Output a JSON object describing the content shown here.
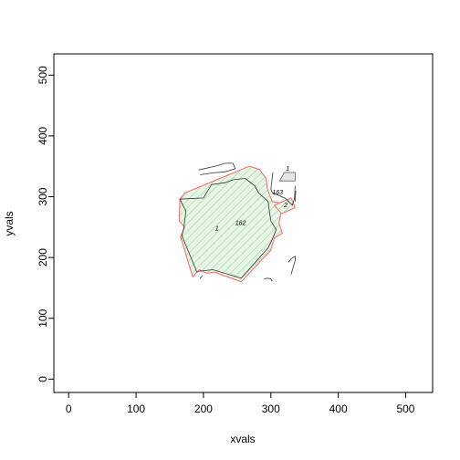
{
  "chart_data": {
    "type": "map",
    "title": "",
    "xlabel": "xvals",
    "ylabel": "yvals",
    "xlim": [
      -22,
      540
    ],
    "ylim": [
      -22,
      535
    ],
    "xticks": [
      0,
      100,
      200,
      300,
      400,
      500
    ],
    "yticks": [
      0,
      100,
      200,
      300,
      400,
      500
    ],
    "grid": false,
    "colors": {
      "main_fill": "#e6f5e6",
      "main_hatch": "#9ad99a",
      "main_border": "#ff6666",
      "building_fill": "#e6e6e6",
      "linework": "#333333"
    },
    "polygons": [
      {
        "id": "main-parcel",
        "style": "main",
        "points": [
          [
            165,
            296
          ],
          [
            172,
            306
          ],
          [
            268,
            350
          ],
          [
            283,
            345
          ],
          [
            293,
            330
          ],
          [
            295,
            312
          ],
          [
            302,
            292
          ],
          [
            318,
            289
          ],
          [
            312,
            257
          ],
          [
            317,
            240
          ],
          [
            305,
            232
          ],
          [
            300,
            212
          ],
          [
            256,
            160
          ],
          [
            216,
            176
          ],
          [
            205,
            174
          ],
          [
            194,
            180
          ],
          [
            184,
            168
          ],
          [
            166,
            234
          ],
          [
            172,
            250
          ],
          [
            164,
            260
          ]
        ]
      },
      {
        "id": "inner-building",
        "style": "inner",
        "points": [
          [
            165,
            296
          ],
          [
            200,
            298
          ],
          [
            212,
            320
          ],
          [
            232,
            323
          ],
          [
            244,
            328
          ],
          [
            262,
            330
          ],
          [
            276,
            318
          ],
          [
            282,
            306
          ],
          [
            296,
            292
          ],
          [
            298,
            274
          ],
          [
            300,
            260
          ],
          [
            308,
            246
          ],
          [
            302,
            230
          ],
          [
            296,
            216
          ],
          [
            256,
            166
          ],
          [
            214,
            180
          ],
          [
            190,
            177
          ],
          [
            168,
            236
          ],
          [
            171,
            250
          ],
          [
            174,
            276
          ]
        ]
      },
      {
        "id": "parcel-2",
        "style": "small",
        "points": [
          [
            305,
            286
          ],
          [
            330,
            298
          ],
          [
            336,
            282
          ],
          [
            316,
            272
          ]
        ]
      },
      {
        "id": "building-1",
        "style": "building",
        "points": [
          [
            313,
            326
          ],
          [
            320,
            340
          ],
          [
            336,
            340
          ],
          [
            336,
            326
          ]
        ]
      }
    ],
    "polylines": [
      {
        "id": "line-top-left",
        "points": [
          [
            193,
            344
          ],
          [
            220,
            351
          ],
          [
            232,
            355
          ],
          [
            244,
            355
          ],
          [
            247,
            346
          ],
          [
            232,
            341
          ],
          [
            213,
            339
          ],
          [
            195,
            336
          ]
        ]
      },
      {
        "id": "line-top-right",
        "points": [
          [
            303,
            340
          ],
          [
            300,
            313
          ],
          [
            302,
            307
          ],
          [
            322,
            297
          ],
          [
            332,
            286
          ],
          [
            335,
            297
          ],
          [
            336,
            318
          ]
        ]
      },
      {
        "id": "line-right-bottom",
        "points": [
          [
            326,
            192
          ],
          [
            330,
            198
          ],
          [
            336,
            202
          ],
          [
            336,
            195
          ],
          [
            330,
            172
          ]
        ]
      },
      {
        "id": "line-bottom-mid",
        "points": [
          [
            290,
            164
          ],
          [
            294,
            166
          ],
          [
            300,
            165
          ],
          [
            302,
            161
          ]
        ]
      },
      {
        "id": "line-bottom-left",
        "points": [
          [
            195,
            165
          ],
          [
            198,
            170
          ]
        ]
      },
      {
        "id": "line-right-edge",
        "points": [
          [
            337,
            310
          ],
          [
            336,
            292
          ]
        ]
      }
    ],
    "annotations": [
      {
        "label": "162",
        "x": 255,
        "y": 256
      },
      {
        "label": "163",
        "x": 310,
        "y": 306
      },
      {
        "label": "1",
        "x": 220,
        "y": 247
      },
      {
        "label": "2",
        "x": 322,
        "y": 285
      },
      {
        "label": "1",
        "x": 325,
        "y": 345
      }
    ]
  }
}
